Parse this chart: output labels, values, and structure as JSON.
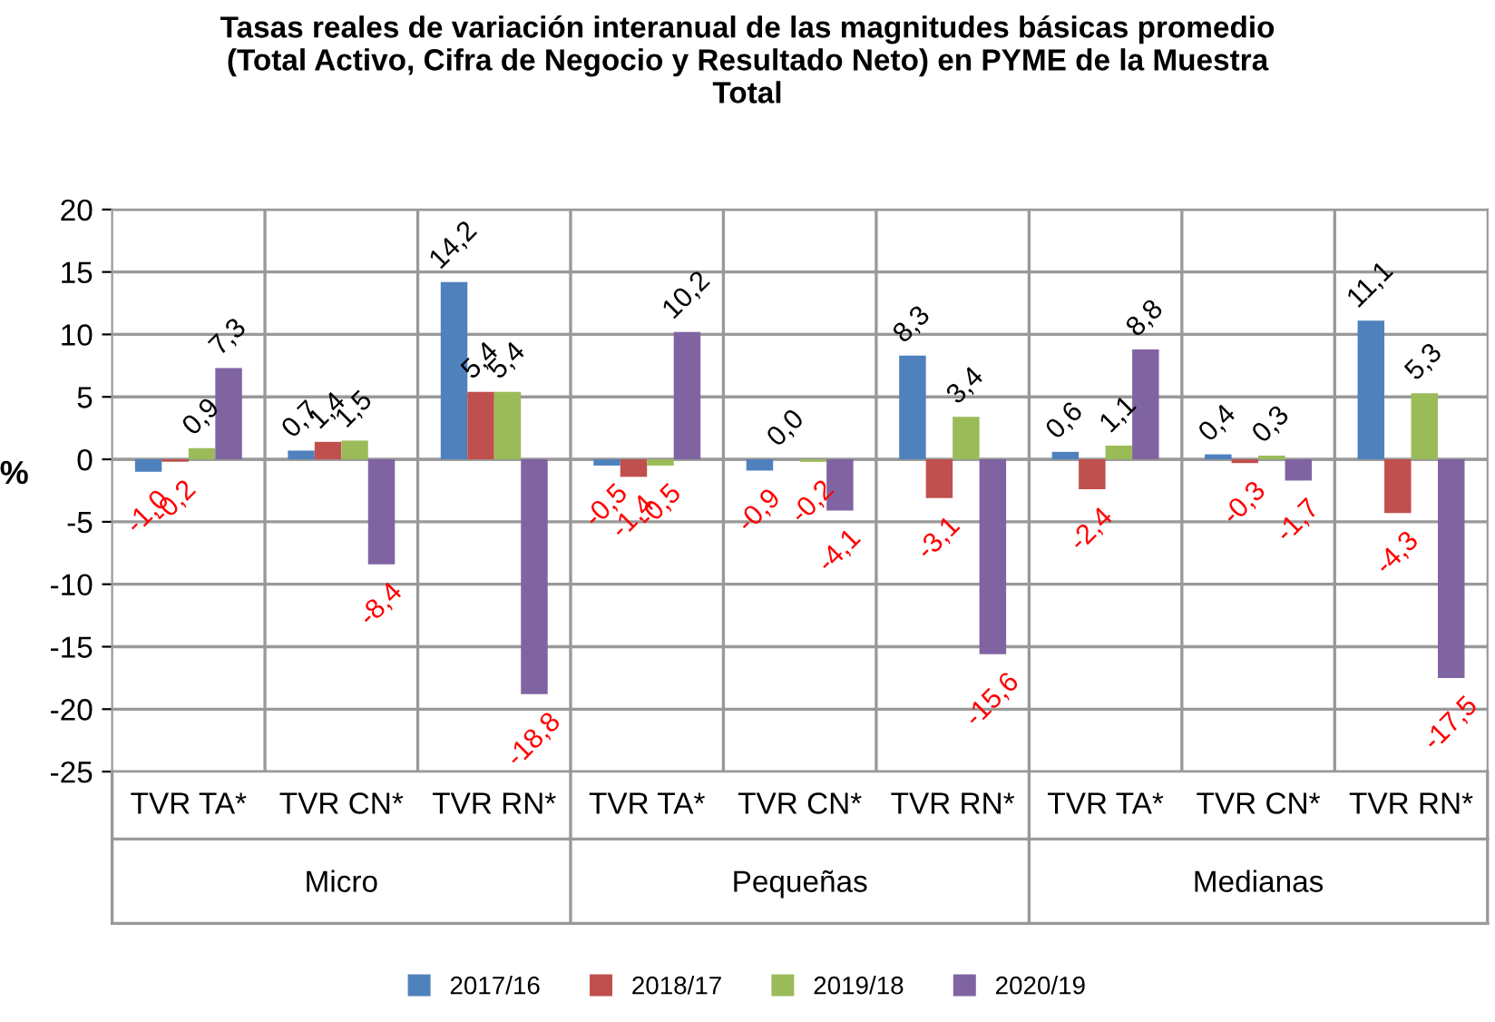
{
  "chart_data": {
    "type": "bar",
    "title": "Tasas reales de variación interanual de las magnitudes básicas promedio\n(Total Activo, Cifra de Negocio y Resultado Neto) en PYME de la Muestra\nTotal",
    "ylabel": "%",
    "categories": [
      "TVR TA*",
      "TVR CN*",
      "TVR RN*",
      "TVR TA*",
      "TVR CN*",
      "TVR RN*",
      "TVR TA*",
      "TVR CN*",
      "TVR RN*"
    ],
    "annotations": [
      "Micro",
      "Pequeñas",
      "Medianas"
    ],
    "series": [
      {
        "name": "2017/16",
        "color": "#4f81bd",
        "values": [
          -1.0,
          0.7,
          14.2,
          -0.5,
          -0.9,
          8.3,
          0.6,
          0.4,
          11.1
        ],
        "value_labels": [
          "-1,0",
          "0,7",
          "14,2",
          "-0,5",
          "-0,9",
          "8,3",
          "0,6",
          "0,4",
          "11,1"
        ]
      },
      {
        "name": "2018/17",
        "color": "#c0504d",
        "values": [
          -0.2,
          1.4,
          5.4,
          -1.4,
          0.0,
          -3.1,
          -2.4,
          -0.3,
          -4.3
        ],
        "value_labels": [
          "-0,2",
          "1,4",
          "5,4",
          "-1,4",
          "0,0",
          "-3,1",
          "-2,4",
          "-0,3",
          "-4,3"
        ]
      },
      {
        "name": "2019/18",
        "color": "#9bbb59",
        "values": [
          0.9,
          1.5,
          5.4,
          -0.5,
          -0.2,
          3.4,
          1.1,
          0.3,
          5.3
        ],
        "value_labels": [
          "0,9",
          "1,5",
          "5,4",
          "-0,5",
          "-0,2",
          "3,4",
          "1,1",
          "0,3",
          "5,3"
        ]
      },
      {
        "name": "2020/19",
        "color": "#8064a2",
        "values": [
          7.3,
          -8.4,
          -18.8,
          10.2,
          -4.1,
          -15.6,
          8.8,
          -1.7,
          -17.5
        ],
        "value_labels": [
          "7,3",
          "-8,4",
          "-18,8",
          "10,2",
          "-4,1",
          "-15,6",
          "8,8",
          "-1,7",
          "-17,5"
        ]
      }
    ],
    "ylim": [
      -25,
      20
    ],
    "yticks": [
      -25,
      -20,
      -15,
      -10,
      -5,
      0,
      5,
      10,
      15,
      20
    ],
    "grid": true,
    "legend": "bottom"
  }
}
